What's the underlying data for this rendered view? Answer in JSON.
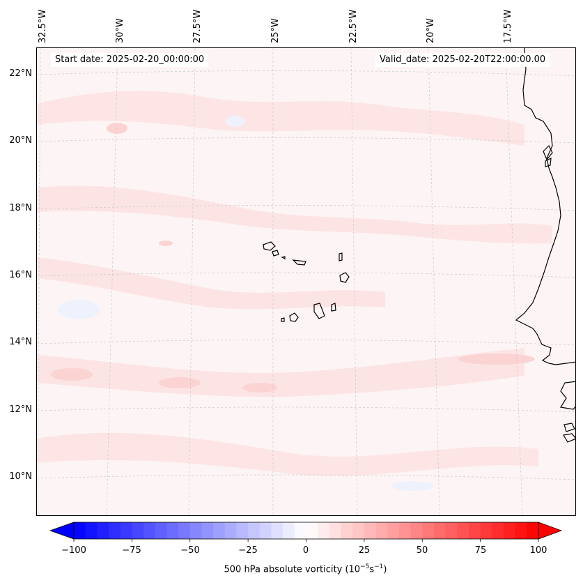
{
  "map": {
    "start_date": "Start date: 2025-02-20_00:00:00",
    "valid_date": "Valid_date: 2025-02-20T22:00:00.00",
    "lon_labels": [
      "32.5°W",
      "30°W",
      "27.5°W",
      "25°W",
      "22.5°W",
      "20°W",
      "17.5°W"
    ],
    "lat_labels": [
      "22°N",
      "20°N",
      "18°N",
      "16°N",
      "14°N",
      "12°N",
      "10°N"
    ],
    "extent": {
      "lon_min": -32.7,
      "lon_max": -15.2,
      "lat_min": 8.9,
      "lat_max": 22.8
    },
    "background_color": "#fdf6f6",
    "coast_color": "#000000"
  },
  "colorbar": {
    "label_prefix": "500 hPa absolute vorticity (10",
    "label_exp1": "−5",
    "label_mid": "s",
    "label_exp2": "−1",
    "label_suffix": ")",
    "ticks": [
      "−100",
      "−75",
      "−50",
      "−25",
      "0",
      "25",
      "50",
      "75",
      "100"
    ],
    "min": -100,
    "max": 100,
    "low_color": "#0000ff",
    "mid_color": "#ffffff",
    "high_color": "#ff0000"
  }
}
